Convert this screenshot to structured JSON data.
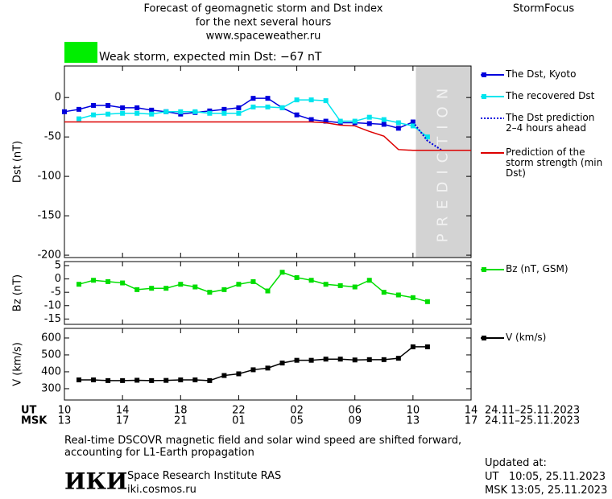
{
  "header": {
    "title_lines": [
      "Forecast of geomagnetic storm and Dst index",
      "for the next several hours",
      "www.spaceweather.ru"
    ],
    "brand": "StormFocus"
  },
  "chart_data": [
    {
      "type": "line",
      "y_label": "Dst (nT)",
      "annotation": {
        "text": "Weak storm, expected min Dst: −67 nT",
        "color": "#00ee00"
      },
      "prediction_region": {
        "x": [
          34.2,
          38
        ],
        "label": "PREDICTION",
        "color": "#d3d3d3"
      },
      "xlim": [
        10,
        38
      ],
      "ylim": [
        -203,
        40
      ],
      "yticks": [
        0,
        -50,
        -100,
        -150,
        -200
      ],
      "series": [
        {
          "name": "The Dst, Kyoto",
          "color": "#0000dd",
          "marker": "square",
          "style": "solid",
          "x": [
            10,
            11,
            12,
            13,
            14,
            15,
            16,
            17,
            18,
            19,
            20,
            21,
            22,
            23,
            24,
            25,
            26,
            27,
            28,
            29,
            30,
            31,
            32,
            33,
            34
          ],
          "values": [
            -18,
            -15,
            -10,
            -10,
            -13,
            -13,
            -16,
            -18,
            -21,
            -19,
            -17,
            -15,
            -13,
            -1,
            -1,
            -13,
            -22,
            -28,
            -30,
            -32,
            -32,
            -33,
            -34,
            -39,
            -31
          ]
        },
        {
          "name": "The recovered Dst",
          "color": "#00e5ee",
          "marker": "square",
          "style": "solid",
          "x": [
            11,
            12,
            13,
            14,
            15,
            16,
            17,
            18,
            19,
            20,
            21,
            22,
            23,
            24,
            25,
            26,
            27,
            28,
            29,
            30,
            31,
            32,
            33,
            34,
            35
          ],
          "values": [
            -27,
            -22,
            -21,
            -20,
            -20,
            -21,
            -18,
            -18,
            -18,
            -20,
            -20,
            -20,
            -12,
            -12,
            -13,
            -3,
            -3,
            -4,
            -30,
            -30,
            -25,
            -28,
            -32,
            -36,
            -50
          ]
        },
        {
          "name": "The Dst prediction 2–4 hours ahead",
          "color": "#0000dd",
          "marker": "none",
          "style": "dotted",
          "x": [
            34,
            35,
            36
          ],
          "values": [
            -31,
            -55,
            -67
          ]
        },
        {
          "name": "Prediction of the storm strength (min Dst)",
          "color": "#dd0000",
          "marker": "none",
          "style": "solid",
          "x": [
            10,
            27,
            28,
            29,
            30,
            31,
            32,
            33,
            34,
            38
          ],
          "values": [
            -31,
            -31,
            -32,
            -35,
            -36,
            -43,
            -49,
            -66,
            -67,
            -67
          ]
        }
      ]
    },
    {
      "type": "line",
      "y_label": "Bz (nT)",
      "xlim": [
        10,
        38
      ],
      "ylim": [
        -17,
        6.5
      ],
      "yticks": [
        5,
        0,
        -5,
        -10,
        -15
      ],
      "series": [
        {
          "name": "Bz (nT, GSM)",
          "color": "#00dd00",
          "marker": "square",
          "style": "solid",
          "x": [
            11,
            12,
            13,
            14,
            15,
            16,
            17,
            18,
            19,
            20,
            21,
            22,
            23,
            24,
            25,
            26,
            27,
            28,
            29,
            30,
            31,
            32,
            33,
            34,
            35
          ],
          "values": [
            -2,
            -0.5,
            -1,
            -1.5,
            -4,
            -3.5,
            -3.5,
            -2,
            -3,
            -5,
            -4,
            -2,
            -1,
            -4.5,
            2.5,
            0.5,
            -0.5,
            -2,
            -2.5,
            -3,
            -0.5,
            -5,
            -6,
            -7,
            -8.5
          ]
        }
      ]
    },
    {
      "type": "line",
      "y_label": "V (km/s)",
      "xlim": [
        10,
        38
      ],
      "ylim": [
        233,
        657
      ],
      "yticks": [
        300,
        400,
        500,
        600
      ],
      "xticks": [
        10,
        14,
        18,
        22,
        {
          "value": 26,
          "label": "02"
        },
        {
          "value": 30,
          "label": "06"
        },
        {
          "value": 34,
          "label": "10"
        },
        {
          "value": 38,
          "label": "14"
        }
      ],
      "msk_ticks": [
        {
          "value": 10,
          "label": "13"
        },
        {
          "value": 14,
          "label": "17"
        },
        {
          "value": 18,
          "label": "21"
        },
        {
          "value": 22,
          "label": "01"
        },
        {
          "value": 26,
          "label": "05"
        },
        {
          "value": 30,
          "label": "09"
        },
        {
          "value": 34,
          "label": "13"
        },
        {
          "value": 38,
          "label": "17"
        }
      ],
      "ut_label": "UT",
      "msk_label": "MSK",
      "ut_dates": "24.11–25.11.2023",
      "msk_dates": "24.11–25.11.2023",
      "series": [
        {
          "name": "V (km/s)",
          "color": "#000000",
          "marker": "square",
          "style": "solid",
          "x": [
            11,
            12,
            13,
            14,
            15,
            16,
            17,
            18,
            19,
            20,
            21,
            22,
            23,
            24,
            25,
            26,
            27,
            28,
            29,
            30,
            31,
            32,
            33,
            34,
            35
          ],
          "values": [
            352,
            352,
            348,
            348,
            350,
            348,
            349,
            352,
            352,
            348,
            378,
            388,
            412,
            422,
            452,
            468,
            468,
            475,
            475,
            470,
            472,
            472,
            480,
            548,
            548
          ]
        }
      ]
    }
  ],
  "footer": {
    "note": "Real-time DSCOVR magnetic field and solar wind speed are shifted forward, accounting for L1-Earth propagation",
    "logo": "ИКИ",
    "institute": "Space Research Institute RAS",
    "site": "iki.cosmos.ru",
    "updated_label": "Updated at:",
    "updated_ut": "UT   10:05, 25.11.2023",
    "updated_msk": "MSK 13:05, 25.11.2023"
  }
}
